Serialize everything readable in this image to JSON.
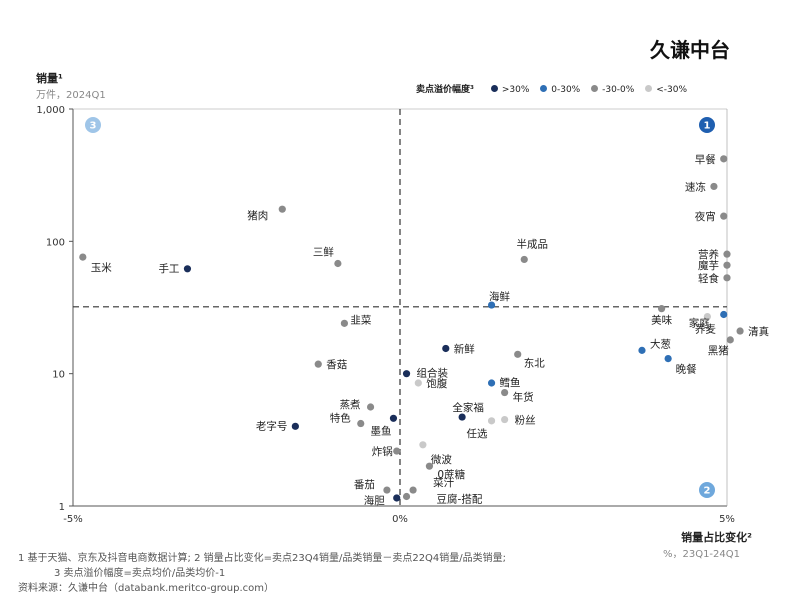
{
  "brand": "久谦中台",
  "y_axis": {
    "label": "销量¹",
    "sub": "万件，2024Q1"
  },
  "x_axis": {
    "label": "销量占比变化²",
    "sub": "%，23Q1-24Q1"
  },
  "legend": {
    "title": "卖点溢价幅度³",
    "items": [
      {
        "key": "g1",
        "label": ">30%",
        "color": "#1a2e5a"
      },
      {
        "key": "g2",
        "label": "0-30%",
        "color": "#2e6fb5"
      },
      {
        "key": "g3",
        "label": "-30-0%",
        "color": "#8a8a8a"
      },
      {
        "key": "g4",
        "label": "<-30%",
        "color": "#c9c9c9"
      }
    ]
  },
  "quadrants": [
    {
      "id": "1",
      "label": "1",
      "color": "#1f5fb0"
    },
    {
      "id": "2",
      "label": "2",
      "color": "#6fa8dc"
    },
    {
      "id": "3",
      "label": "3",
      "color": "#9fc5e8"
    }
  ],
  "notes": {
    "line1": "1   基于天猫、京东及抖音电商数据计算; 2   销量占比变化=卖点23Q4销量/品类销量－卖点22Q4销量/品类销量;",
    "line2": "3   卖点溢价幅度=卖点均价/品类均价-1",
    "source": "资料来源：久谦中台（databank.meritco-group.com）"
  },
  "chart_data": {
    "type": "scatter",
    "x_scale": "linear",
    "y_scale": "log",
    "xlim": [
      -5,
      5
    ],
    "ylim": [
      1,
      1000
    ],
    "x_ticks": [
      "-5%",
      "0%",
      "5%"
    ],
    "y_ticks": [
      "1",
      "10",
      "100",
      "1,000"
    ],
    "x_ref": 0,
    "y_ref": 32,
    "points": [
      {
        "label": "早餐",
        "x": 4.95,
        "y": 420,
        "group": "g3"
      },
      {
        "label": "速冻",
        "x": 4.8,
        "y": 260,
        "group": "g3"
      },
      {
        "label": "夜宵",
        "x": 4.95,
        "y": 155,
        "group": "g3"
      },
      {
        "label": "营养",
        "x": 5.0,
        "y": 80,
        "group": "g3"
      },
      {
        "label": "魔芋",
        "x": 5.0,
        "y": 66,
        "group": "g3"
      },
      {
        "label": "轻食",
        "x": 5.0,
        "y": 53,
        "group": "g3"
      },
      {
        "label": "荞麦",
        "x": 4.7,
        "y": 27,
        "group": "g4"
      },
      {
        "label": "美味",
        "x": 4.0,
        "y": 31,
        "group": "g3"
      },
      {
        "label": "猪肉",
        "x": -1.8,
        "y": 175,
        "group": "g3"
      },
      {
        "label": "玉米",
        "x": -4.85,
        "y": 76,
        "group": "g3"
      },
      {
        "label": "手工",
        "x": -3.25,
        "y": 62,
        "group": "g1"
      },
      {
        "label": "三鲜",
        "x": -0.95,
        "y": 68,
        "group": "g3"
      },
      {
        "label": "半成品",
        "x": 1.9,
        "y": 73,
        "group": "g3"
      },
      {
        "label": "海鲜",
        "x": 1.4,
        "y": 33,
        "group": "g2"
      },
      {
        "label": "韭菜",
        "x": -0.85,
        "y": 24,
        "group": "g3"
      },
      {
        "label": "家庭",
        "x": 4.95,
        "y": 28,
        "group": "g2"
      },
      {
        "label": "清真",
        "x": 5.2,
        "y": 21,
        "group": "g3"
      },
      {
        "label": "黑猪",
        "x": 5.05,
        "y": 18,
        "group": "g3"
      },
      {
        "label": "大葱",
        "x": 3.7,
        "y": 15,
        "group": "g2"
      },
      {
        "label": "晚餐",
        "x": 4.1,
        "y": 13,
        "group": "g2"
      },
      {
        "label": "新鲜",
        "x": 0.7,
        "y": 15.5,
        "group": "g1"
      },
      {
        "label": "东北",
        "x": 1.8,
        "y": 14,
        "group": "g3"
      },
      {
        "label": "香菇",
        "x": -1.25,
        "y": 11.8,
        "group": "g3"
      },
      {
        "label": "组合装",
        "x": 0.1,
        "y": 10,
        "group": "g1"
      },
      {
        "label": "饱腹",
        "x": 0.28,
        "y": 8.5,
        "group": "g4"
      },
      {
        "label": "鳕鱼",
        "x": 1.4,
        "y": 8.5,
        "group": "g2"
      },
      {
        "label": "年货",
        "x": 1.6,
        "y": 7.2,
        "group": "g3"
      },
      {
        "label": "蒸煮",
        "x": -0.45,
        "y": 5.6,
        "group": "g3"
      },
      {
        "label": "特色",
        "x": -0.6,
        "y": 4.2,
        "group": "g3"
      },
      {
        "label": "老字号",
        "x": -1.6,
        "y": 4.0,
        "group": "g1"
      },
      {
        "label": "全家福",
        "x": 0.95,
        "y": 4.7,
        "group": "g1"
      },
      {
        "label": "粉丝",
        "x": 1.6,
        "y": 4.5,
        "group": "g4"
      },
      {
        "label": "墨鱼",
        "x": -0.1,
        "y": 4.6,
        "group": "g1"
      },
      {
        "label": "任选",
        "x": 1.4,
        "y": 4.4,
        "group": "g4"
      },
      {
        "label": "炸锅",
        "x": -0.05,
        "y": 2.6,
        "group": "g3"
      },
      {
        "label": "微波",
        "x": 0.35,
        "y": 2.9,
        "group": "g4"
      },
      {
        "label": "0蔗糖",
        "x": 0.45,
        "y": 2.0,
        "group": "g3"
      },
      {
        "label": "番茄",
        "x": -0.2,
        "y": 1.32,
        "group": "g3"
      },
      {
        "label": "菜汁",
        "x": 0.2,
        "y": 1.32,
        "group": "g3"
      },
      {
        "label": "海胆",
        "x": -0.05,
        "y": 1.15,
        "group": "g1"
      },
      {
        "label": "豆腐-搭配",
        "x": 0.1,
        "y": 1.18,
        "group": "g3"
      }
    ]
  }
}
